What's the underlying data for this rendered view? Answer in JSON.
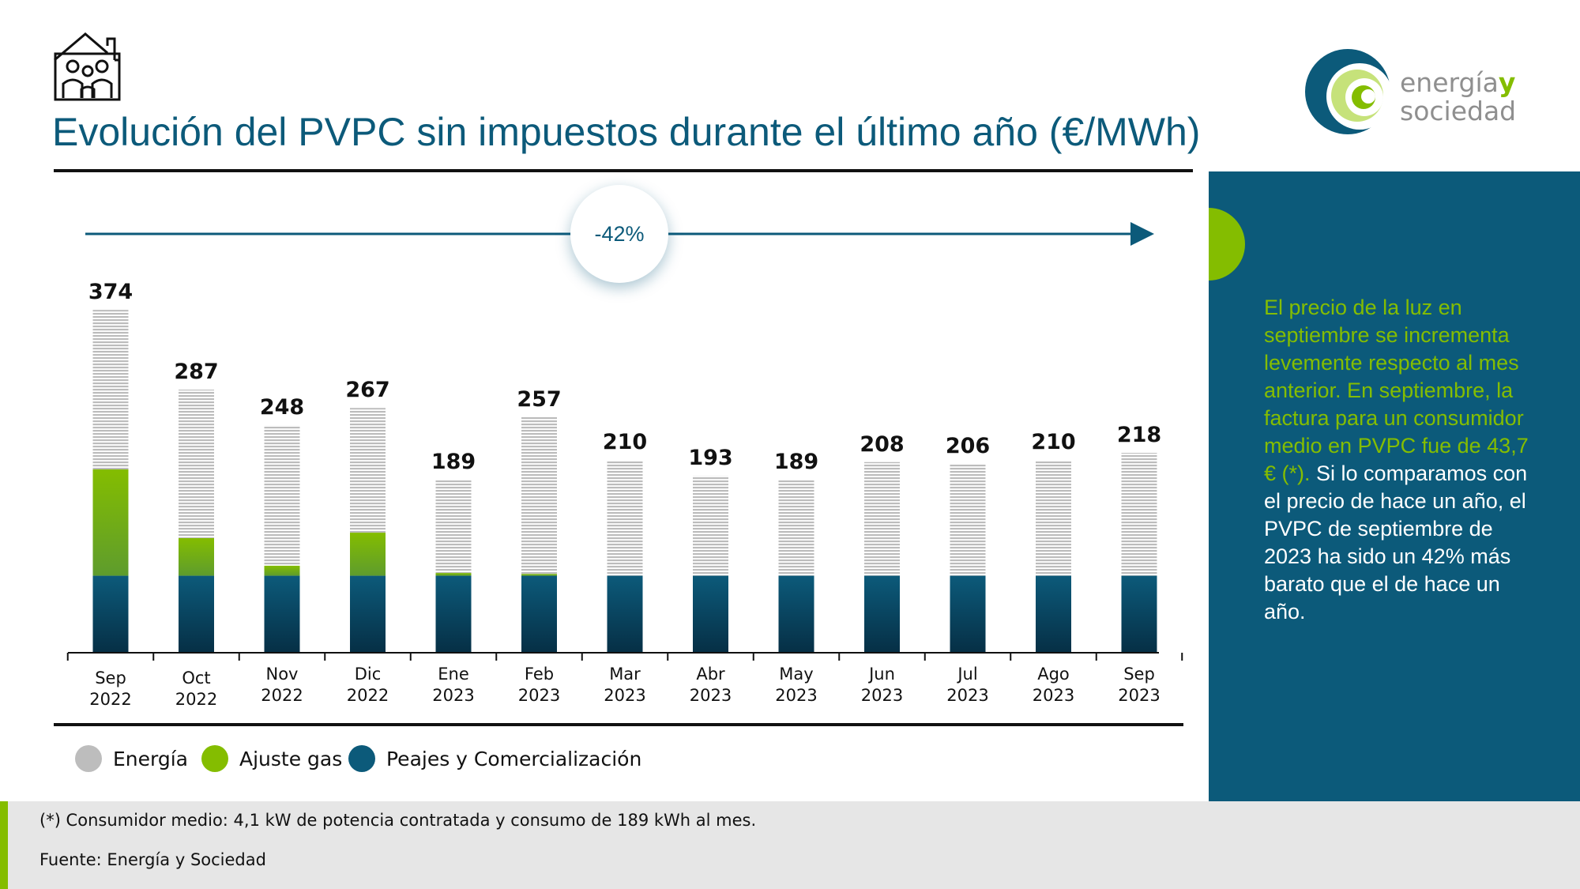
{
  "header": {
    "title": "Evolución del PVPC sin impuestos durante el último año (€/MWh)",
    "icon": "house-family-icon"
  },
  "logo": {
    "line1_main": "energía",
    "line1_accent": "y",
    "line2": "sociedad"
  },
  "chart_data": {
    "type": "bar",
    "stacked": true,
    "title": "Evolución del PVPC sin impuestos durante el último año (€/MWh)",
    "categories": [
      "Sep 2022",
      "Oct 2022",
      "Nov 2022",
      "Dic 2022",
      "Ene 2023",
      "Feb 2023",
      "Mar 2023",
      "Abr 2023",
      "May 2023",
      "Jun 2023",
      "Jul 2023",
      "Ago 2023",
      "Sep 2023"
    ],
    "category_lines": [
      [
        "Sep",
        "2022"
      ],
      [
        "Oct",
        "2022"
      ],
      [
        "Nov",
        "2022"
      ],
      [
        "Dic",
        "2022"
      ],
      [
        "Ene",
        "2023"
      ],
      [
        "Feb",
        "2023"
      ],
      [
        "Mar",
        "2023"
      ],
      [
        "Abr",
        "2023"
      ],
      [
        "May",
        "2023"
      ],
      [
        "Jun",
        "2023"
      ],
      [
        "Jul",
        "2023"
      ],
      [
        "Ago",
        "2023"
      ],
      [
        "Sep",
        "2023"
      ]
    ],
    "series": [
      {
        "name": "Peajes y Comercialización",
        "color": "#0c5a7a",
        "values": [
          84,
          84,
          84,
          84,
          84,
          84,
          84,
          84,
          84,
          84,
          84,
          84,
          84
        ]
      },
      {
        "name": "Ajuste gas",
        "color": "#84bd00",
        "values": [
          116,
          41,
          11,
          47,
          3,
          2,
          0,
          0,
          0,
          0,
          0,
          0,
          0
        ]
      },
      {
        "name": "Energía",
        "color": "#bdbdbd",
        "values": [
          174,
          162,
          153,
          136,
          102,
          171,
          126,
          109,
          105,
          124,
          122,
          126,
          134
        ]
      }
    ],
    "totals": [
      374,
      287,
      248,
      267,
      189,
      257,
      210,
      193,
      189,
      208,
      206,
      210,
      218
    ],
    "annotation": "-42%",
    "ylim": [
      0,
      400
    ],
    "grid": false,
    "legend_position": "bottom-left",
    "legend_order": [
      "Energía",
      "Ajuste gas",
      "Peajes y Comercialización"
    ]
  },
  "side_panel": {
    "highlight": "El precio de la luz en septiembre se incrementa levemente respecto al mes anterior.  En septiembre, la factura para un consumidor medio en PVPC fue de 43,7 € (*).",
    "body": "Si lo comparamos con el precio de hace un año, el PVPC de septiembre de 2023 ha sido un 42% más barato que el de hace un año.",
    "colors": {
      "background": "#0c5a7a",
      "highlight": "#84bd00",
      "body": "#ffffff"
    }
  },
  "footer": {
    "note": "(*) Consumidor medio: 4,1 kW de potencia contratada y consumo de 189 kWh al mes.",
    "source": "Fuente: Energía y Sociedad"
  }
}
